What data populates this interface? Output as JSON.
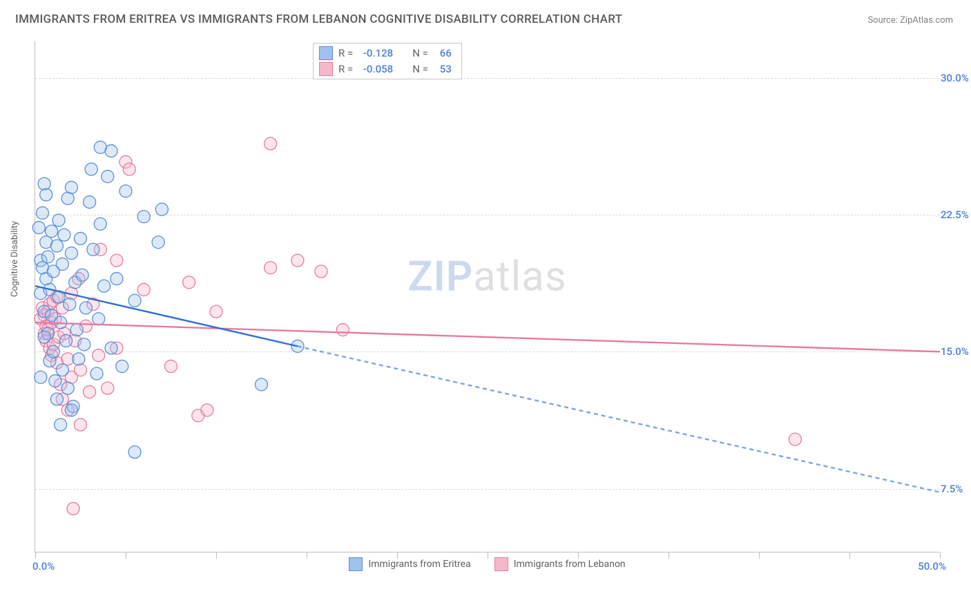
{
  "title": "IMMIGRANTS FROM ERITREA VS IMMIGRANTS FROM LEBANON COGNITIVE DISABILITY CORRELATION CHART",
  "source_label": "Source:",
  "source_name": "ZipAtlas.com",
  "watermark_a": "ZIP",
  "watermark_b": "atlas",
  "y_axis_label": "Cognitive Disability",
  "chart": {
    "type": "scatter",
    "xlim": [
      0,
      50
    ],
    "ylim": [
      4,
      32
    ],
    "x_ticks": [
      0,
      5,
      10,
      15,
      20,
      25,
      30,
      35,
      40,
      45,
      50
    ],
    "x_tick_labels": {
      "0": "0.0%",
      "50": "50.0%"
    },
    "y_gridlines": [
      7.5,
      15.0,
      22.5,
      30.0
    ],
    "y_tick_labels": [
      "7.5%",
      "15.0%",
      "22.5%",
      "30.0%"
    ],
    "background_color": "#ffffff",
    "grid_color": "#d8d8d8",
    "axis_color": "#bdbdbd",
    "tick_label_color": "#4a7fd8",
    "marker_radius": 9,
    "marker_fill_opacity": 0.35,
    "marker_stroke_width": 1.3,
    "trend_line_width": 2.4,
    "series": {
      "eritrea": {
        "label": "Immigrants from Eritrea",
        "color_fill": "#9fc1ee",
        "color_stroke": "#5a8fd6",
        "r_value": "-0.128",
        "n_value": "66",
        "trend_solid": {
          "x1": 0.0,
          "y1": 18.6,
          "x2": 14.5,
          "y2": 15.3
        },
        "trend_dash": {
          "x1": 14.5,
          "y1": 15.3,
          "x2": 50.0,
          "y2": 7.3
        },
        "points": [
          [
            0.2,
            21.8
          ],
          [
            0.3,
            20.0
          ],
          [
            0.3,
            18.2
          ],
          [
            0.4,
            19.6
          ],
          [
            0.4,
            22.6
          ],
          [
            0.5,
            24.2
          ],
          [
            0.5,
            17.2
          ],
          [
            0.6,
            21.0
          ],
          [
            0.6,
            19.0
          ],
          [
            0.7,
            16.0
          ],
          [
            0.7,
            20.2
          ],
          [
            0.8,
            14.5
          ],
          [
            0.8,
            18.4
          ],
          [
            0.9,
            21.6
          ],
          [
            0.9,
            17.0
          ],
          [
            1.0,
            15.0
          ],
          [
            1.0,
            19.4
          ],
          [
            1.1,
            13.4
          ],
          [
            1.2,
            20.8
          ],
          [
            1.2,
            12.4
          ],
          [
            1.3,
            18.0
          ],
          [
            1.3,
            22.2
          ],
          [
            1.4,
            16.6
          ],
          [
            1.5,
            14.0
          ],
          [
            1.5,
            19.8
          ],
          [
            1.6,
            21.4
          ],
          [
            1.7,
            15.6
          ],
          [
            1.8,
            13.0
          ],
          [
            1.9,
            17.6
          ],
          [
            2.0,
            20.4
          ],
          [
            2.0,
            24.0
          ],
          [
            2.1,
            12.0
          ],
          [
            2.2,
            18.8
          ],
          [
            2.3,
            16.2
          ],
          [
            2.4,
            14.6
          ],
          [
            2.5,
            21.2
          ],
          [
            2.6,
            19.2
          ],
          [
            2.7,
            15.4
          ],
          [
            2.8,
            17.4
          ],
          [
            3.0,
            23.2
          ],
          [
            3.1,
            25.0
          ],
          [
            3.2,
            20.6
          ],
          [
            3.4,
            13.8
          ],
          [
            3.5,
            16.8
          ],
          [
            3.6,
            22.0
          ],
          [
            3.8,
            18.6
          ],
          [
            4.0,
            24.6
          ],
          [
            4.2,
            15.2
          ],
          [
            4.2,
            26.0
          ],
          [
            4.5,
            19.0
          ],
          [
            4.8,
            14.2
          ],
          [
            5.0,
            23.8
          ],
          [
            3.6,
            26.2
          ],
          [
            5.5,
            17.8
          ],
          [
            5.5,
            9.5
          ],
          [
            6.0,
            22.4
          ],
          [
            6.8,
            21.0
          ],
          [
            7.0,
            22.8
          ],
          [
            2.0,
            11.8
          ],
          [
            0.6,
            23.6
          ],
          [
            1.4,
            11.0
          ],
          [
            0.3,
            13.6
          ],
          [
            0.5,
            15.8
          ],
          [
            1.8,
            23.4
          ],
          [
            12.5,
            13.2
          ],
          [
            14.5,
            15.3
          ]
        ]
      },
      "lebanon": {
        "label": "Immigrants from Lebanon",
        "color_fill": "#f5b8cb",
        "color_stroke": "#e77aa0",
        "r_value": "-0.058",
        "n_value": "53",
        "trend_solid": {
          "x1": 0.0,
          "y1": 16.6,
          "x2": 50.0,
          "y2": 15.0
        },
        "trend_dash": null,
        "points": [
          [
            0.3,
            16.8
          ],
          [
            0.4,
            17.4
          ],
          [
            0.5,
            16.0
          ],
          [
            0.5,
            17.0
          ],
          [
            0.6,
            16.4
          ],
          [
            0.6,
            15.6
          ],
          [
            0.7,
            17.2
          ],
          [
            0.7,
            16.2
          ],
          [
            0.8,
            15.2
          ],
          [
            0.8,
            17.6
          ],
          [
            0.9,
            16.6
          ],
          [
            0.9,
            14.8
          ],
          [
            1.0,
            17.8
          ],
          [
            1.0,
            15.4
          ],
          [
            1.1,
            16.8
          ],
          [
            1.2,
            14.4
          ],
          [
            1.2,
            18.0
          ],
          [
            1.3,
            15.8
          ],
          [
            1.4,
            13.2
          ],
          [
            1.5,
            17.4
          ],
          [
            1.5,
            12.4
          ],
          [
            1.6,
            16.0
          ],
          [
            1.8,
            14.6
          ],
          [
            1.8,
            11.8
          ],
          [
            2.0,
            18.2
          ],
          [
            2.0,
            13.6
          ],
          [
            2.1,
            6.4
          ],
          [
            2.2,
            15.6
          ],
          [
            2.4,
            19.0
          ],
          [
            2.5,
            14.0
          ],
          [
            2.5,
            11.0
          ],
          [
            2.8,
            16.4
          ],
          [
            3.0,
            12.8
          ],
          [
            3.2,
            17.6
          ],
          [
            3.5,
            14.8
          ],
          [
            3.6,
            20.6
          ],
          [
            4.0,
            13.0
          ],
          [
            4.5,
            15.2
          ],
          [
            4.5,
            20.0
          ],
          [
            5.0,
            25.4
          ],
          [
            5.2,
            25.0
          ],
          [
            6.0,
            18.4
          ],
          [
            7.5,
            14.2
          ],
          [
            8.5,
            18.8
          ],
          [
            9.0,
            11.5
          ],
          [
            9.5,
            11.8
          ],
          [
            10.0,
            17.2
          ],
          [
            13.0,
            19.6
          ],
          [
            13.0,
            26.4
          ],
          [
            14.5,
            20.0
          ],
          [
            15.8,
            19.4
          ],
          [
            17.0,
            16.2
          ],
          [
            42.0,
            10.2
          ]
        ]
      }
    },
    "stats_box": {
      "r_label": "R  =",
      "n_label": "N  ="
    },
    "legend_swatch_size": 20
  }
}
